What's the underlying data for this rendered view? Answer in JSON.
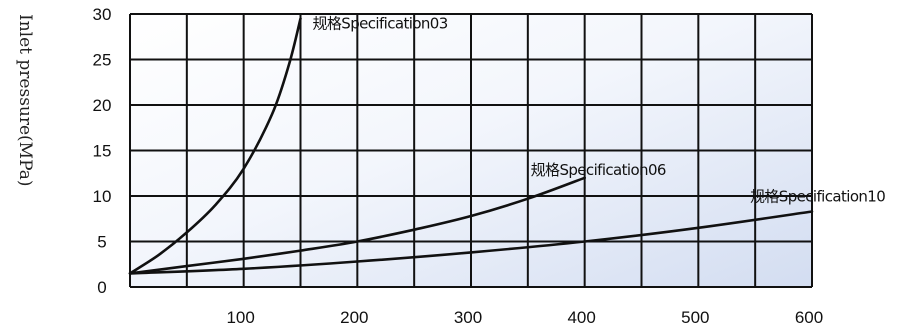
{
  "chart_data": {
    "type": "line",
    "title": "",
    "xlabel": "",
    "ylabel": "Inlet pressure(MPa)",
    "xlim": [
      0,
      600
    ],
    "ylim": [
      0,
      30
    ],
    "x_ticks": [
      "100",
      "200",
      "300",
      "400",
      "500",
      "600"
    ],
    "y_ticks": [
      "0",
      "5",
      "10",
      "15",
      "20",
      "25",
      "30"
    ],
    "grid": true,
    "background": "#e6ecf8",
    "series": [
      {
        "name": "规格Specification03",
        "x": [
          0,
          25,
          50,
          75,
          100,
          125,
          140,
          150
        ],
        "y": [
          1.5,
          3.5,
          6,
          9,
          13,
          19,
          24.5,
          29.5
        ]
      },
      {
        "name": "规格Specification06",
        "x": [
          0,
          50,
          100,
          150,
          200,
          250,
          300,
          350,
          400
        ],
        "y": [
          1.5,
          2.3,
          3.1,
          4,
          5,
          6.3,
          7.8,
          9.7,
          12
        ]
      },
      {
        "name": "规格Specification10",
        "x": [
          0,
          100,
          200,
          300,
          400,
          500,
          600
        ],
        "y": [
          1.5,
          2,
          2.8,
          3.8,
          5,
          6.5,
          8.3
        ]
      }
    ]
  }
}
